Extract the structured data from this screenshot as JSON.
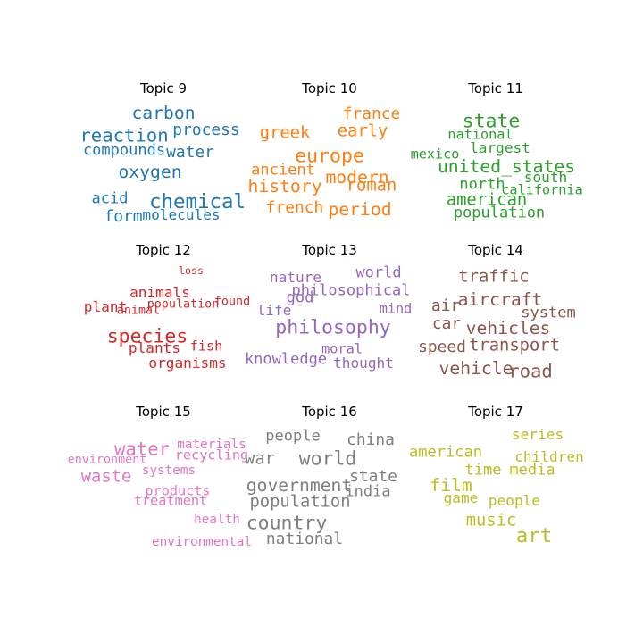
{
  "chart_data": [
    {
      "type": "wordcloud",
      "title": "Topic 9",
      "color": "#1f77b4",
      "words": [
        {
          "text": "carbon",
          "weight": 0.65
        },
        {
          "text": "reaction",
          "weight": 0.7
        },
        {
          "text": "process",
          "weight": 0.55
        },
        {
          "text": "compounds",
          "weight": 0.5
        },
        {
          "text": "water",
          "weight": 0.55
        },
        {
          "text": "oxygen",
          "weight": 0.65
        },
        {
          "text": "acid",
          "weight": 0.5
        },
        {
          "text": "chemical",
          "weight": 0.8
        },
        {
          "text": "form",
          "weight": 0.55
        },
        {
          "text": "molecules",
          "weight": 0.45
        }
      ]
    },
    {
      "type": "wordcloud",
      "title": "Topic 10",
      "color": "#ff7f0e",
      "words": [
        {
          "text": "france",
          "weight": 0.55
        },
        {
          "text": "greek",
          "weight": 0.6
        },
        {
          "text": "early",
          "weight": 0.6
        },
        {
          "text": "europe",
          "weight": 0.75
        },
        {
          "text": "ancient",
          "weight": 0.5
        },
        {
          "text": "modern",
          "weight": 0.65
        },
        {
          "text": "history",
          "weight": 0.65
        },
        {
          "text": "roman",
          "weight": 0.6
        },
        {
          "text": "french",
          "weight": 0.55
        },
        {
          "text": "period",
          "weight": 0.65
        }
      ]
    },
    {
      "type": "wordcloud",
      "title": "Topic 11",
      "color": "#2ca02c",
      "words": [
        {
          "text": "state",
          "weight": 0.75
        },
        {
          "text": "national",
          "weight": 0.4
        },
        {
          "text": "largest",
          "weight": 0.45
        },
        {
          "text": "mexico",
          "weight": 0.4
        },
        {
          "text": "united_states",
          "weight": 0.65
        },
        {
          "text": "south",
          "weight": 0.45
        },
        {
          "text": "north",
          "weight": 0.5
        },
        {
          "text": "california",
          "weight": 0.4
        },
        {
          "text": "american",
          "weight": 0.6
        },
        {
          "text": "population",
          "weight": 0.5
        }
      ]
    },
    {
      "type": "wordcloud",
      "title": "Topic 12",
      "color": "#d62728",
      "words": [
        {
          "text": "loss",
          "weight": 0.2
        },
        {
          "text": "animals",
          "weight": 0.45
        },
        {
          "text": "plant",
          "weight": 0.45
        },
        {
          "text": "animal",
          "weight": 0.3
        },
        {
          "text": "population",
          "weight": 0.3
        },
        {
          "text": "found",
          "weight": 0.3
        },
        {
          "text": "species",
          "weight": 0.75
        },
        {
          "text": "plants",
          "weight": 0.45
        },
        {
          "text": "fish",
          "weight": 0.4
        },
        {
          "text": "organisms",
          "weight": 0.45
        }
      ]
    },
    {
      "type": "wordcloud",
      "title": "Topic 13",
      "color": "#9467bd",
      "words": [
        {
          "text": "world",
          "weight": 0.5
        },
        {
          "text": "nature",
          "weight": 0.45
        },
        {
          "text": "philosophical",
          "weight": 0.5
        },
        {
          "text": "god",
          "weight": 0.5
        },
        {
          "text": "life",
          "weight": 0.45
        },
        {
          "text": "mind",
          "weight": 0.4
        },
        {
          "text": "philosophy",
          "weight": 0.75
        },
        {
          "text": "moral",
          "weight": 0.4
        },
        {
          "text": "knowledge",
          "weight": 0.5
        },
        {
          "text": "thought",
          "weight": 0.45
        }
      ]
    },
    {
      "type": "wordcloud",
      "title": "Topic 14",
      "color": "#8c564b",
      "words": [
        {
          "text": "traffic",
          "weight": 0.6
        },
        {
          "text": "aircraft",
          "weight": 0.65
        },
        {
          "text": "air",
          "weight": 0.55
        },
        {
          "text": "system",
          "weight": 0.5
        },
        {
          "text": "car",
          "weight": 0.55
        },
        {
          "text": "vehicles",
          "weight": 0.65
        },
        {
          "text": "speed",
          "weight": 0.55
        },
        {
          "text": "transport",
          "weight": 0.6
        },
        {
          "text": "vehicle",
          "weight": 0.65
        },
        {
          "text": "road",
          "weight": 0.7
        }
      ]
    },
    {
      "type": "wordcloud",
      "title": "Topic 15",
      "color": "#e377c2",
      "words": [
        {
          "text": "water",
          "weight": 0.7
        },
        {
          "text": "materials",
          "weight": 0.35
        },
        {
          "text": "environment",
          "weight": 0.3
        },
        {
          "text": "recycling",
          "weight": 0.4
        },
        {
          "text": "waste",
          "weight": 0.6
        },
        {
          "text": "systems",
          "weight": 0.35
        },
        {
          "text": "products",
          "weight": 0.4
        },
        {
          "text": "treatment",
          "weight": 0.4
        },
        {
          "text": "health",
          "weight": 0.35
        },
        {
          "text": "environmental",
          "weight": 0.35
        }
      ]
    },
    {
      "type": "wordcloud",
      "title": "Topic 16",
      "color": "#7f7f7f",
      "words": [
        {
          "text": "people",
          "weight": 0.5
        },
        {
          "text": "china",
          "weight": 0.55
        },
        {
          "text": "world",
          "weight": 0.75
        },
        {
          "text": "war",
          "weight": 0.6
        },
        {
          "text": "state",
          "weight": 0.55
        },
        {
          "text": "government",
          "weight": 0.65
        },
        {
          "text": "india",
          "weight": 0.5
        },
        {
          "text": "population",
          "weight": 0.6
        },
        {
          "text": "country",
          "weight": 0.75
        },
        {
          "text": "national",
          "weight": 0.55
        }
      ]
    },
    {
      "type": "wordcloud",
      "title": "Topic 17",
      "color": "#bcbd22",
      "words": [
        {
          "text": "series",
          "weight": 0.45
        },
        {
          "text": "american",
          "weight": 0.5
        },
        {
          "text": "children",
          "weight": 0.45
        },
        {
          "text": "time",
          "weight": 0.5
        },
        {
          "text": "media",
          "weight": 0.5
        },
        {
          "text": "film",
          "weight": 0.65
        },
        {
          "text": "game",
          "weight": 0.45
        },
        {
          "text": "people",
          "weight": 0.45
        },
        {
          "text": "music",
          "weight": 0.6
        },
        {
          "text": "art",
          "weight": 0.8
        }
      ]
    }
  ]
}
